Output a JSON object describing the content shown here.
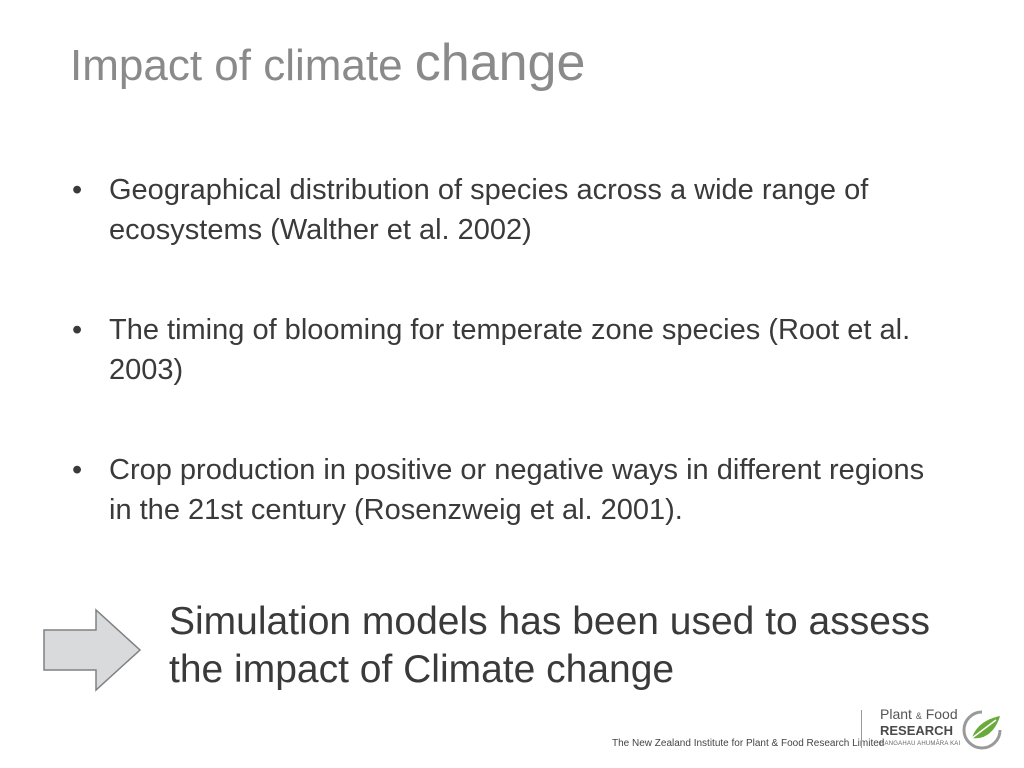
{
  "slide": {
    "title_part1": "Impact of climate ",
    "title_part2": "change",
    "bullets": [
      "Geographical distribution of species across a wide range of ecosystems (Walther et al. 2002)",
      "The timing of blooming for temperate zone species (Root et al. 2003)",
      "Crop production in positive or negative ways in different regions in the 21st century (Rosenzweig et al. 2001)."
    ],
    "bullet_symbol": "•",
    "callout": "Simulation models has been used to assess the impact of Climate change"
  },
  "footer": {
    "institute": "The New Zealand Institute for Plant & Food Research Limited",
    "logo_line1_a": "Plant ",
    "logo_line1_amp": "&",
    "logo_line1_b": " Food",
    "logo_line2": "RESEARCH",
    "logo_line3": "RANGAHAU AHUMĀRA KAI"
  },
  "colors": {
    "title": "#8a8a8a",
    "text": "#3a3a3a",
    "arrow_fill": "#d9dadb",
    "logo_green": "#6aaa3a"
  },
  "icons": {
    "arrow": "right-arrow-icon",
    "logo": "leaf-swirl-icon"
  }
}
